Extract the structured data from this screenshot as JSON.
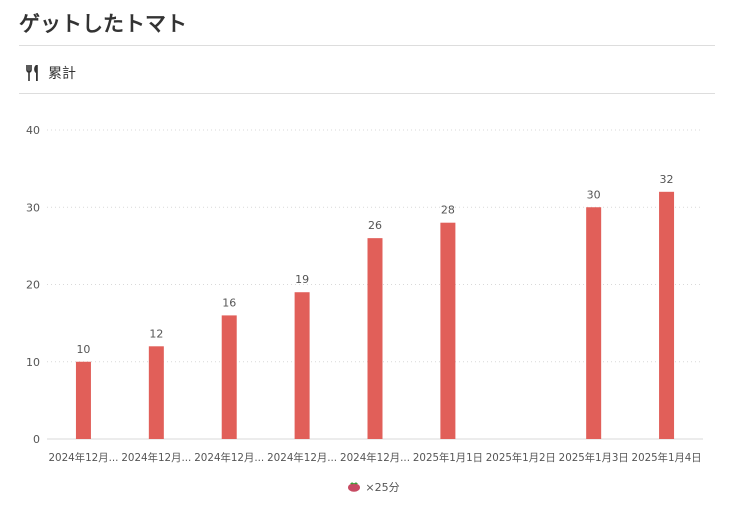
{
  "header": {
    "title": "ゲットしたトマト"
  },
  "section": {
    "label": "累計",
    "icon": "fork-knife-icon"
  },
  "legend": {
    "label": "×25分",
    "icon": "tomato-icon"
  },
  "colors": {
    "bar": "#e15f59",
    "grid": "#d9d9d9",
    "text": "#555555"
  },
  "chart_data": {
    "type": "bar",
    "categories": [
      "2024年12月...",
      "2024年12月...",
      "2024年12月...",
      "2024年12月...",
      "2024年12月...",
      "2025年1月1日",
      "2025年1月2日",
      "2025年1月3日",
      "2025年1月4日"
    ],
    "values": [
      10,
      12,
      16,
      19,
      26,
      28,
      null,
      30,
      32
    ],
    "data_labels": [
      "10",
      "12",
      "16",
      "19",
      "26",
      "28",
      "",
      "30",
      "32"
    ],
    "yticks": [
      0,
      10,
      20,
      30,
      40
    ],
    "ylim": [
      0,
      40
    ],
    "grid": true,
    "legend_position": "bottom"
  }
}
